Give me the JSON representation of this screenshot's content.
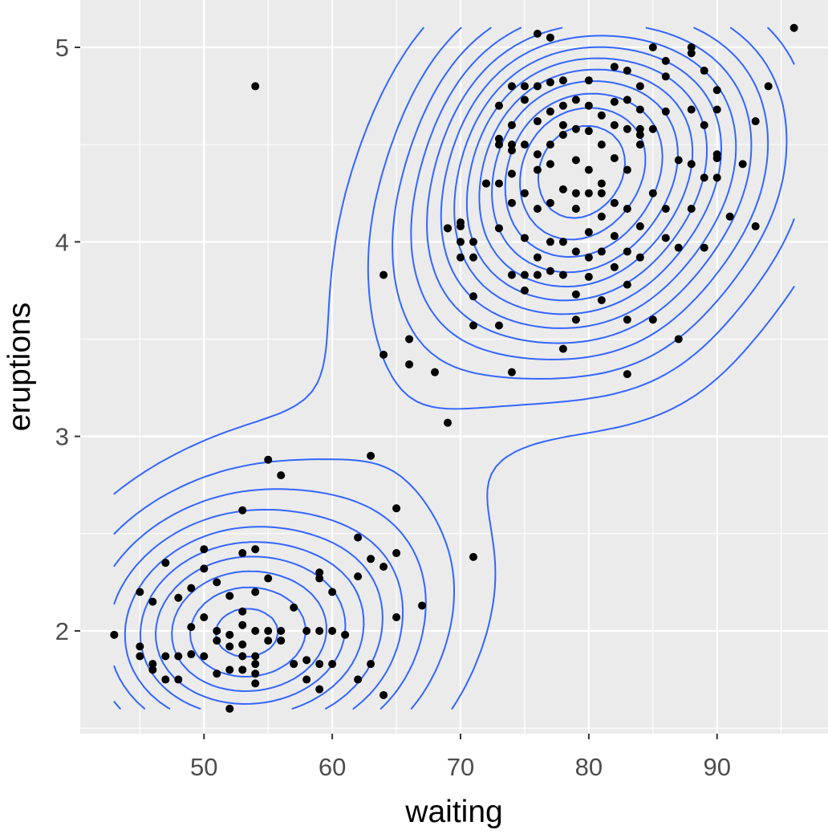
{
  "chart_data": {
    "type": "scatter",
    "title": "",
    "xlabel": "waiting",
    "ylabel": "eruptions",
    "xlim": [
      40.35,
      98.65
    ],
    "ylim": [
      1.4717,
      5.2433
    ],
    "x_ticks": [
      50,
      60,
      70,
      80,
      90
    ],
    "x_tick_labels": [
      "50",
      "60",
      "70",
      "80",
      "90"
    ],
    "y_ticks": [
      2,
      3,
      4,
      5
    ],
    "y_tick_labels": [
      "2",
      "3",
      "4",
      "5"
    ],
    "grid": true,
    "legend": "none",
    "colors": {
      "panel": "#EBEBEB",
      "grid": "#FFFFFF",
      "points": "#000000",
      "contours": "#3366FF"
    },
    "overlay": "2d density contours",
    "series": [
      {
        "points": [
          [
            43,
            1.98
          ],
          [
            45,
            2.2
          ],
          [
            45,
            1.92
          ],
          [
            45,
            1.87
          ],
          [
            46,
            2.15
          ],
          [
            46,
            1.83
          ],
          [
            46,
            1.8
          ],
          [
            47,
            2.35
          ],
          [
            47,
            1.87
          ],
          [
            47,
            1.75
          ],
          [
            48,
            2.17
          ],
          [
            48,
            1.87
          ],
          [
            48,
            1.75
          ],
          [
            49,
            2.22
          ],
          [
            49,
            2.02
          ],
          [
            49,
            1.88
          ],
          [
            50,
            2.42
          ],
          [
            50,
            2.32
          ],
          [
            50,
            2.07
          ],
          [
            50,
            1.87
          ],
          [
            51,
            2.25
          ],
          [
            51,
            2.0
          ],
          [
            51,
            1.95
          ],
          [
            51,
            1.78
          ],
          [
            52,
            2.18
          ],
          [
            52,
            1.98
          ],
          [
            52,
            1.92
          ],
          [
            52,
            1.8
          ],
          [
            52,
            1.6
          ],
          [
            53,
            2.62
          ],
          [
            53,
            2.4
          ],
          [
            53,
            2.1
          ],
          [
            53,
            2.03
          ],
          [
            53,
            1.93
          ],
          [
            53,
            1.87
          ],
          [
            53,
            1.8
          ],
          [
            54,
            2.42
          ],
          [
            54,
            2.2
          ],
          [
            54,
            2.0
          ],
          [
            54,
            1.87
          ],
          [
            54,
            1.83
          ],
          [
            54,
            1.78
          ],
          [
            54,
            1.73
          ],
          [
            55,
            2.88
          ],
          [
            55,
            2.27
          ],
          [
            55,
            2.0
          ],
          [
            55,
            1.95
          ],
          [
            56,
            2.8
          ],
          [
            56,
            2.0
          ],
          [
            56,
            1.95
          ],
          [
            57,
            2.12
          ],
          [
            57,
            1.83
          ],
          [
            58,
            2.0
          ],
          [
            58,
            1.85
          ],
          [
            58,
            1.75
          ],
          [
            59,
            2.3
          ],
          [
            59,
            2.27
          ],
          [
            59,
            2.0
          ],
          [
            59,
            1.83
          ],
          [
            59,
            1.7
          ],
          [
            60,
            2.2
          ],
          [
            60,
            2.0
          ],
          [
            60,
            1.83
          ],
          [
            61,
            1.98
          ],
          [
            62,
            2.48
          ],
          [
            62,
            2.28
          ],
          [
            62,
            1.75
          ],
          [
            63,
            2.9
          ],
          [
            63,
            2.37
          ],
          [
            63,
            1.83
          ],
          [
            64,
            3.83
          ],
          [
            64,
            3.42
          ],
          [
            64,
            2.33
          ],
          [
            64,
            1.67
          ],
          [
            65,
            2.63
          ],
          [
            65,
            2.4
          ],
          [
            65,
            2.07
          ],
          [
            66,
            3.5
          ],
          [
            66,
            3.37
          ],
          [
            67,
            2.13
          ],
          [
            68,
            3.33
          ],
          [
            69,
            4.07
          ],
          [
            69,
            3.07
          ],
          [
            70,
            4.1
          ],
          [
            70,
            4.08
          ],
          [
            70,
            4.0
          ],
          [
            70,
            3.92
          ],
          [
            71,
            4.0
          ],
          [
            71,
            3.92
          ],
          [
            71,
            3.72
          ],
          [
            71,
            3.57
          ],
          [
            71,
            2.38
          ],
          [
            72,
            4.3
          ],
          [
            72,
            4.3
          ],
          [
            73,
            4.7
          ],
          [
            73,
            4.53
          ],
          [
            73,
            4.5
          ],
          [
            73,
            4.3
          ],
          [
            73,
            4.07
          ],
          [
            73,
            3.57
          ],
          [
            74,
            4.8
          ],
          [
            74,
            4.6
          ],
          [
            74,
            4.5
          ],
          [
            74,
            4.47
          ],
          [
            74,
            4.35
          ],
          [
            74,
            4.2
          ],
          [
            74,
            3.83
          ],
          [
            74,
            3.33
          ],
          [
            75,
            4.8
          ],
          [
            75,
            4.73
          ],
          [
            75,
            4.5
          ],
          [
            75,
            4.25
          ],
          [
            75,
            4.02
          ],
          [
            75,
            3.83
          ],
          [
            75,
            3.75
          ],
          [
            76,
            4.8
          ],
          [
            76,
            4.62
          ],
          [
            76,
            4.37
          ],
          [
            76,
            4.17
          ],
          [
            76,
            3.92
          ],
          [
            76,
            3.83
          ],
          [
            77,
            4.82
          ],
          [
            77,
            4.67
          ],
          [
            77,
            4.5
          ],
          [
            77,
            4.4
          ],
          [
            77,
            4.2
          ],
          [
            77,
            4.0
          ],
          [
            77,
            3.85
          ],
          [
            78,
            4.83
          ],
          [
            78,
            4.7
          ],
          [
            78,
            4.55
          ],
          [
            78,
            4.27
          ],
          [
            78,
            4.0
          ],
          [
            78,
            3.83
          ],
          [
            78,
            3.45
          ],
          [
            79,
            4.73
          ],
          [
            79,
            4.58
          ],
          [
            79,
            4.42
          ],
          [
            79,
            4.25
          ],
          [
            79,
            3.95
          ],
          [
            79,
            3.73
          ],
          [
            79,
            3.6
          ],
          [
            80,
            4.83
          ],
          [
            80,
            4.7
          ],
          [
            80,
            4.57
          ],
          [
            80,
            4.37
          ],
          [
            80,
            4.25
          ],
          [
            80,
            4.05
          ],
          [
            80,
            3.92
          ],
          [
            80,
            3.82
          ],
          [
            81,
            4.65
          ],
          [
            81,
            4.5
          ],
          [
            81,
            4.3
          ],
          [
            81,
            4.13
          ],
          [
            81,
            3.95
          ],
          [
            81,
            3.7
          ],
          [
            82,
            4.9
          ],
          [
            82,
            4.72
          ],
          [
            82,
            4.6
          ],
          [
            82,
            4.43
          ],
          [
            82,
            4.2
          ],
          [
            82,
            4.03
          ],
          [
            82,
            3.87
          ],
          [
            83,
            4.88
          ],
          [
            83,
            4.73
          ],
          [
            83,
            4.58
          ],
          [
            83,
            4.37
          ],
          [
            83,
            4.17
          ],
          [
            83,
            3.95
          ],
          [
            83,
            3.78
          ],
          [
            83,
            3.6
          ],
          [
            83,
            3.32
          ],
          [
            84,
            4.8
          ],
          [
            84,
            4.68
          ],
          [
            84,
            4.55
          ],
          [
            84,
            4.5
          ],
          [
            84,
            4.08
          ],
          [
            84,
            3.92
          ],
          [
            85,
            4.58
          ],
          [
            85,
            4.25
          ],
          [
            85,
            3.6
          ],
          [
            86,
            4.93
          ],
          [
            86,
            4.85
          ],
          [
            86,
            4.67
          ],
          [
            86,
            4.17
          ],
          [
            86,
            4.02
          ],
          [
            87,
            4.42
          ],
          [
            87,
            3.97
          ],
          [
            87,
            3.5
          ],
          [
            88,
            5.0
          ],
          [
            88,
            4.97
          ],
          [
            88,
            4.68
          ],
          [
            88,
            4.4
          ],
          [
            88,
            4.17
          ],
          [
            89,
            4.88
          ],
          [
            89,
            4.6
          ],
          [
            89,
            4.33
          ],
          [
            89,
            3.97
          ],
          [
            90,
            4.78
          ],
          [
            90,
            4.68
          ],
          [
            90,
            4.45
          ],
          [
            90,
            4.43
          ],
          [
            90,
            4.33
          ],
          [
            91,
            4.13
          ],
          [
            92,
            4.4
          ],
          [
            93,
            4.62
          ],
          [
            93,
            4.08
          ],
          [
            94,
            4.8
          ],
          [
            96,
            5.1
          ],
          [
            54,
            4.8
          ],
          [
            77,
            5.05
          ],
          [
            76,
            5.07
          ],
          [
            85,
            5.0
          ],
          [
            69,
            4.07
          ],
          [
            78,
            4.6
          ],
          [
            76,
            4.45
          ],
          [
            81,
            4.25
          ],
          [
            79,
            4.17
          ],
          [
            84,
            4.58
          ]
        ]
      }
    ]
  }
}
